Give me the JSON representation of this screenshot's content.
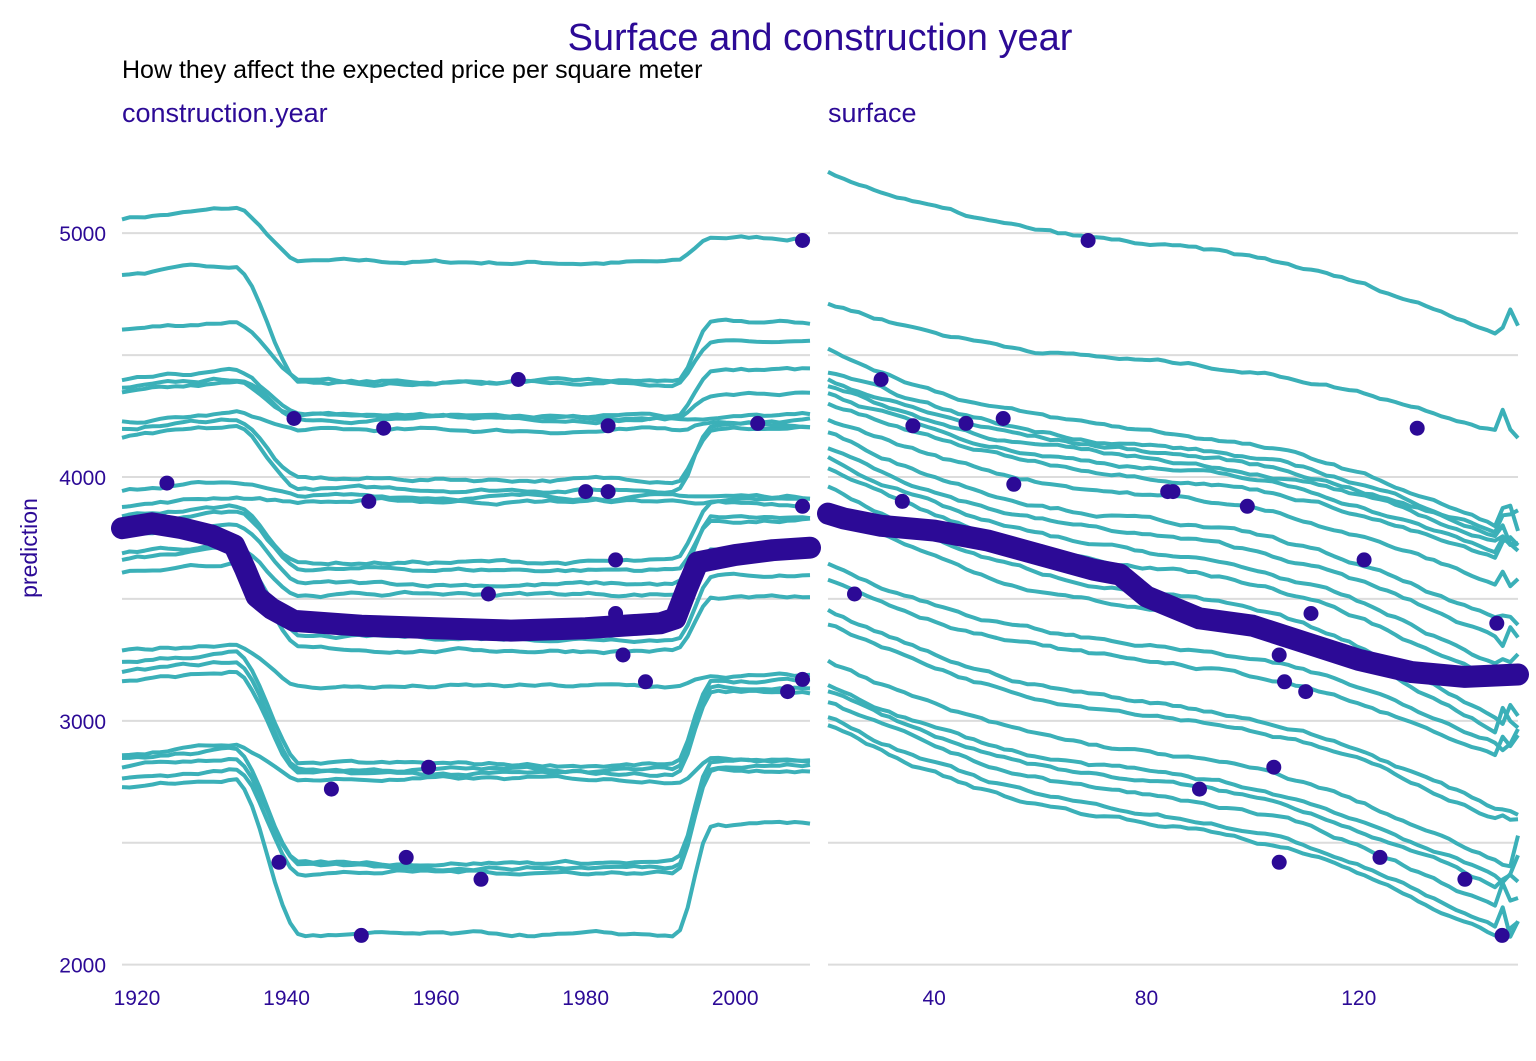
{
  "colors": {
    "background": "#ffffff",
    "grid": "#dcdcdc",
    "accent": "#2c0a96",
    "profile_line": "#3bb0b8",
    "text": "#000000"
  },
  "title": "Surface and construction year",
  "subtitle": "How they affect the expected price per square meter",
  "chart_data": [
    {
      "type": "line",
      "panel": "construction.year",
      "ylabel": "prediction",
      "xlim": [
        1918,
        2010
      ],
      "ylim": [
        1970,
        5300
      ],
      "x_ticks": [
        1920,
        1940,
        1960,
        1980,
        2000
      ],
      "y_ticks": [
        2000,
        3000,
        4000,
        5000
      ],
      "y_grid": [
        2000,
        2500,
        3000,
        3500,
        4000,
        4500,
        5000
      ],
      "grid": "horizontal",
      "profiles": [
        {
          "pre": 5100,
          "mid": 4880,
          "post": 4980
        },
        {
          "pre": 4870,
          "mid": 4390,
          "post": 4630
        },
        {
          "pre": 4640,
          "mid": 4390,
          "post": 4550
        },
        {
          "pre": 4430,
          "mid": 4250,
          "post": 4440
        },
        {
          "pre": 4400,
          "mid": 4240,
          "post": 4340
        },
        {
          "pre": 4380,
          "mid": 4250,
          "post": 4250
        },
        {
          "pre": 4260,
          "mid": 4190,
          "post": 4230
        },
        {
          "pre": 4240,
          "mid": 3990,
          "post": 4200
        },
        {
          "pre": 4200,
          "mid": 3950,
          "post": 4220
        },
        {
          "pre": 3980,
          "mid": 3920,
          "post": 3920
        },
        {
          "pre": 3920,
          "mid": 3900,
          "post": 3900
        },
        {
          "pre": 3880,
          "mid": 3650,
          "post": 3890
        },
        {
          "pre": 3850,
          "mid": 3620,
          "post": 3820
        },
        {
          "pre": 3800,
          "mid": 3560,
          "post": 3830
        },
        {
          "pre": 3720,
          "mid": 3520,
          "post": 3710
        },
        {
          "pre": 3700,
          "mid": 3340,
          "post": 3600
        },
        {
          "pre": 3650,
          "mid": 3290,
          "post": 3500
        },
        {
          "pre": 3320,
          "mid": 3140,
          "post": 3180
        },
        {
          "pre": 3280,
          "mid": 2820,
          "post": 3160
        },
        {
          "pre": 3240,
          "mid": 2800,
          "post": 3140
        },
        {
          "pre": 3200,
          "mid": 2780,
          "post": 3120
        },
        {
          "pre": 2900,
          "mid": 2760,
          "post": 2850
        },
        {
          "pre": 2880,
          "mid": 2420,
          "post": 2830
        },
        {
          "pre": 2850,
          "mid": 2400,
          "post": 2820
        },
        {
          "pre": 2800,
          "mid": 2380,
          "post": 2800
        },
        {
          "pre": 2760,
          "mid": 2120,
          "post": 2570
        }
      ],
      "mean_profile": [
        [
          1918,
          3790
        ],
        [
          1922,
          3810
        ],
        [
          1926,
          3790
        ],
        [
          1930,
          3760
        ],
        [
          1933,
          3720
        ],
        [
          1934.5,
          3620
        ],
        [
          1936,
          3510
        ],
        [
          1938,
          3460
        ],
        [
          1941,
          3410
        ],
        [
          1950,
          3390
        ],
        [
          1960,
          3380
        ],
        [
          1970,
          3370
        ],
        [
          1980,
          3380
        ],
        [
          1990,
          3400
        ],
        [
          1992,
          3420
        ],
        [
          1993.5,
          3540
        ],
        [
          1995,
          3650
        ],
        [
          2000,
          3680
        ],
        [
          2005,
          3700
        ],
        [
          2010,
          3710
        ]
      ],
      "observations": [
        [
          1924,
          3975
        ],
        [
          1941,
          4240
        ],
        [
          1951,
          3900
        ],
        [
          1953,
          4200
        ],
        [
          1971,
          4400
        ],
        [
          1980,
          3940
        ],
        [
          1983,
          4210
        ],
        [
          1983,
          3940
        ],
        [
          1984,
          3660
        ],
        [
          1984,
          3440
        ],
        [
          1985,
          3270
        ],
        [
          1967,
          3520
        ],
        [
          1988,
          3160
        ],
        [
          2003,
          4220
        ],
        [
          2007,
          3120
        ],
        [
          2009,
          4970
        ],
        [
          2009,
          3880
        ],
        [
          2009,
          3170
        ],
        [
          1959,
          2810
        ],
        [
          1946,
          2720
        ],
        [
          1956,
          2440
        ],
        [
          1939,
          2420
        ],
        [
          1966,
          2350
        ],
        [
          1950,
          2120
        ]
      ]
    },
    {
      "type": "line",
      "panel": "surface",
      "ylabel": "prediction",
      "xlim": [
        20,
        150
      ],
      "ylim": [
        1970,
        5300
      ],
      "x_ticks": [
        40,
        80,
        120
      ],
      "y_ticks": [
        2000,
        3000,
        4000,
        5000
      ],
      "y_grid": [
        2000,
        2500,
        3000,
        3500,
        4000,
        4500,
        5000
      ],
      "grid": "horizontal",
      "profiles": [
        {
          "start": 5250,
          "end": 4600
        },
        {
          "start": 4710,
          "end": 4200
        },
        {
          "start": 4520,
          "end": 3800
        },
        {
          "start": 4430,
          "end": 3780
        },
        {
          "start": 4400,
          "end": 3760
        },
        {
          "start": 4370,
          "end": 3730
        },
        {
          "start": 4340,
          "end": 3690
        },
        {
          "start": 4300,
          "end": 3660
        },
        {
          "start": 4240,
          "end": 3560
        },
        {
          "start": 4180,
          "end": 3410
        },
        {
          "start": 4120,
          "end": 3340
        },
        {
          "start": 4080,
          "end": 3230
        },
        {
          "start": 4040,
          "end": 3160
        },
        {
          "start": 3960,
          "end": 3020
        },
        {
          "start": 3880,
          "end": 2960
        },
        {
          "start": 3640,
          "end": 2920
        },
        {
          "start": 3580,
          "end": 2850
        },
        {
          "start": 3450,
          "end": 2640
        },
        {
          "start": 3400,
          "end": 2600
        },
        {
          "start": 3250,
          "end": 2420
        },
        {
          "start": 3150,
          "end": 2360
        },
        {
          "start": 3120,
          "end": 2320
        },
        {
          "start": 3080,
          "end": 2240
        },
        {
          "start": 3020,
          "end": 2150
        },
        {
          "start": 2980,
          "end": 2120
        }
      ],
      "mean_profile": [
        [
          20,
          3850
        ],
        [
          23,
          3830
        ],
        [
          30,
          3800
        ],
        [
          40,
          3780
        ],
        [
          50,
          3740
        ],
        [
          60,
          3680
        ],
        [
          70,
          3620
        ],
        [
          75,
          3600
        ],
        [
          80,
          3510
        ],
        [
          90,
          3420
        ],
        [
          100,
          3390
        ],
        [
          110,
          3320
        ],
        [
          120,
          3250
        ],
        [
          130,
          3200
        ],
        [
          140,
          3180
        ],
        [
          150,
          3190
        ]
      ],
      "observations": [
        [
          25,
          3520
        ],
        [
          30,
          4400
        ],
        [
          34,
          3900
        ],
        [
          36,
          4210
        ],
        [
          46,
          4220
        ],
        [
          53,
          4240
        ],
        [
          55,
          3970
        ],
        [
          69,
          4970
        ],
        [
          84,
          3940
        ],
        [
          85,
          3940
        ],
        [
          99,
          3880
        ],
        [
          104,
          2810
        ],
        [
          105,
          3270
        ],
        [
          105,
          2420
        ],
        [
          106,
          3160
        ],
        [
          110,
          3120
        ],
        [
          111,
          3440
        ],
        [
          121,
          3660
        ],
        [
          124,
          2440
        ],
        [
          131,
          4200
        ],
        [
          140,
          2350
        ],
        [
          146,
          3400
        ],
        [
          90,
          2720
        ],
        [
          147,
          2120
        ]
      ]
    }
  ]
}
